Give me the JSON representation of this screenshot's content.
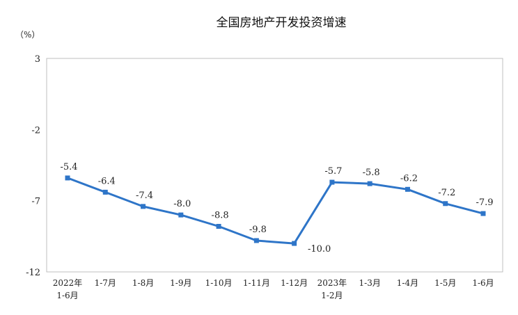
{
  "chart_data": {
    "type": "line",
    "title": "全国房地产开发投资增速",
    "unit": "（%）",
    "ylim": [
      -12,
      3
    ],
    "yticks": [
      "3",
      "-2",
      "-7",
      "-12"
    ],
    "ytick_values": [
      3,
      -2,
      -7,
      -12
    ],
    "grid": false,
    "categories": [
      [
        "2022年",
        "1-6月"
      ],
      [
        "1-7月"
      ],
      [
        "1-8月"
      ],
      [
        "1-9月"
      ],
      [
        "1-10月"
      ],
      [
        "1-11月"
      ],
      [
        "1-12月"
      ],
      [
        "2023年",
        "1-2月"
      ],
      [
        "1-3月"
      ],
      [
        "1-4月"
      ],
      [
        "1-5月"
      ],
      [
        "1-6月"
      ]
    ],
    "values": [
      -5.4,
      -6.4,
      -7.4,
      -8.0,
      -8.8,
      -9.8,
      -10.0,
      -5.7,
      -5.8,
      -6.2,
      -7.2,
      -7.9
    ],
    "data_labels": [
      "-5.4",
      "-6.4",
      "-7.4",
      "-8.0",
      "-8.8",
      "-9.8",
      "-10.0",
      "-5.7",
      "-5.8",
      "-6.2",
      "-7.2",
      "-7.9"
    ],
    "series_color": "#2e75c8"
  }
}
